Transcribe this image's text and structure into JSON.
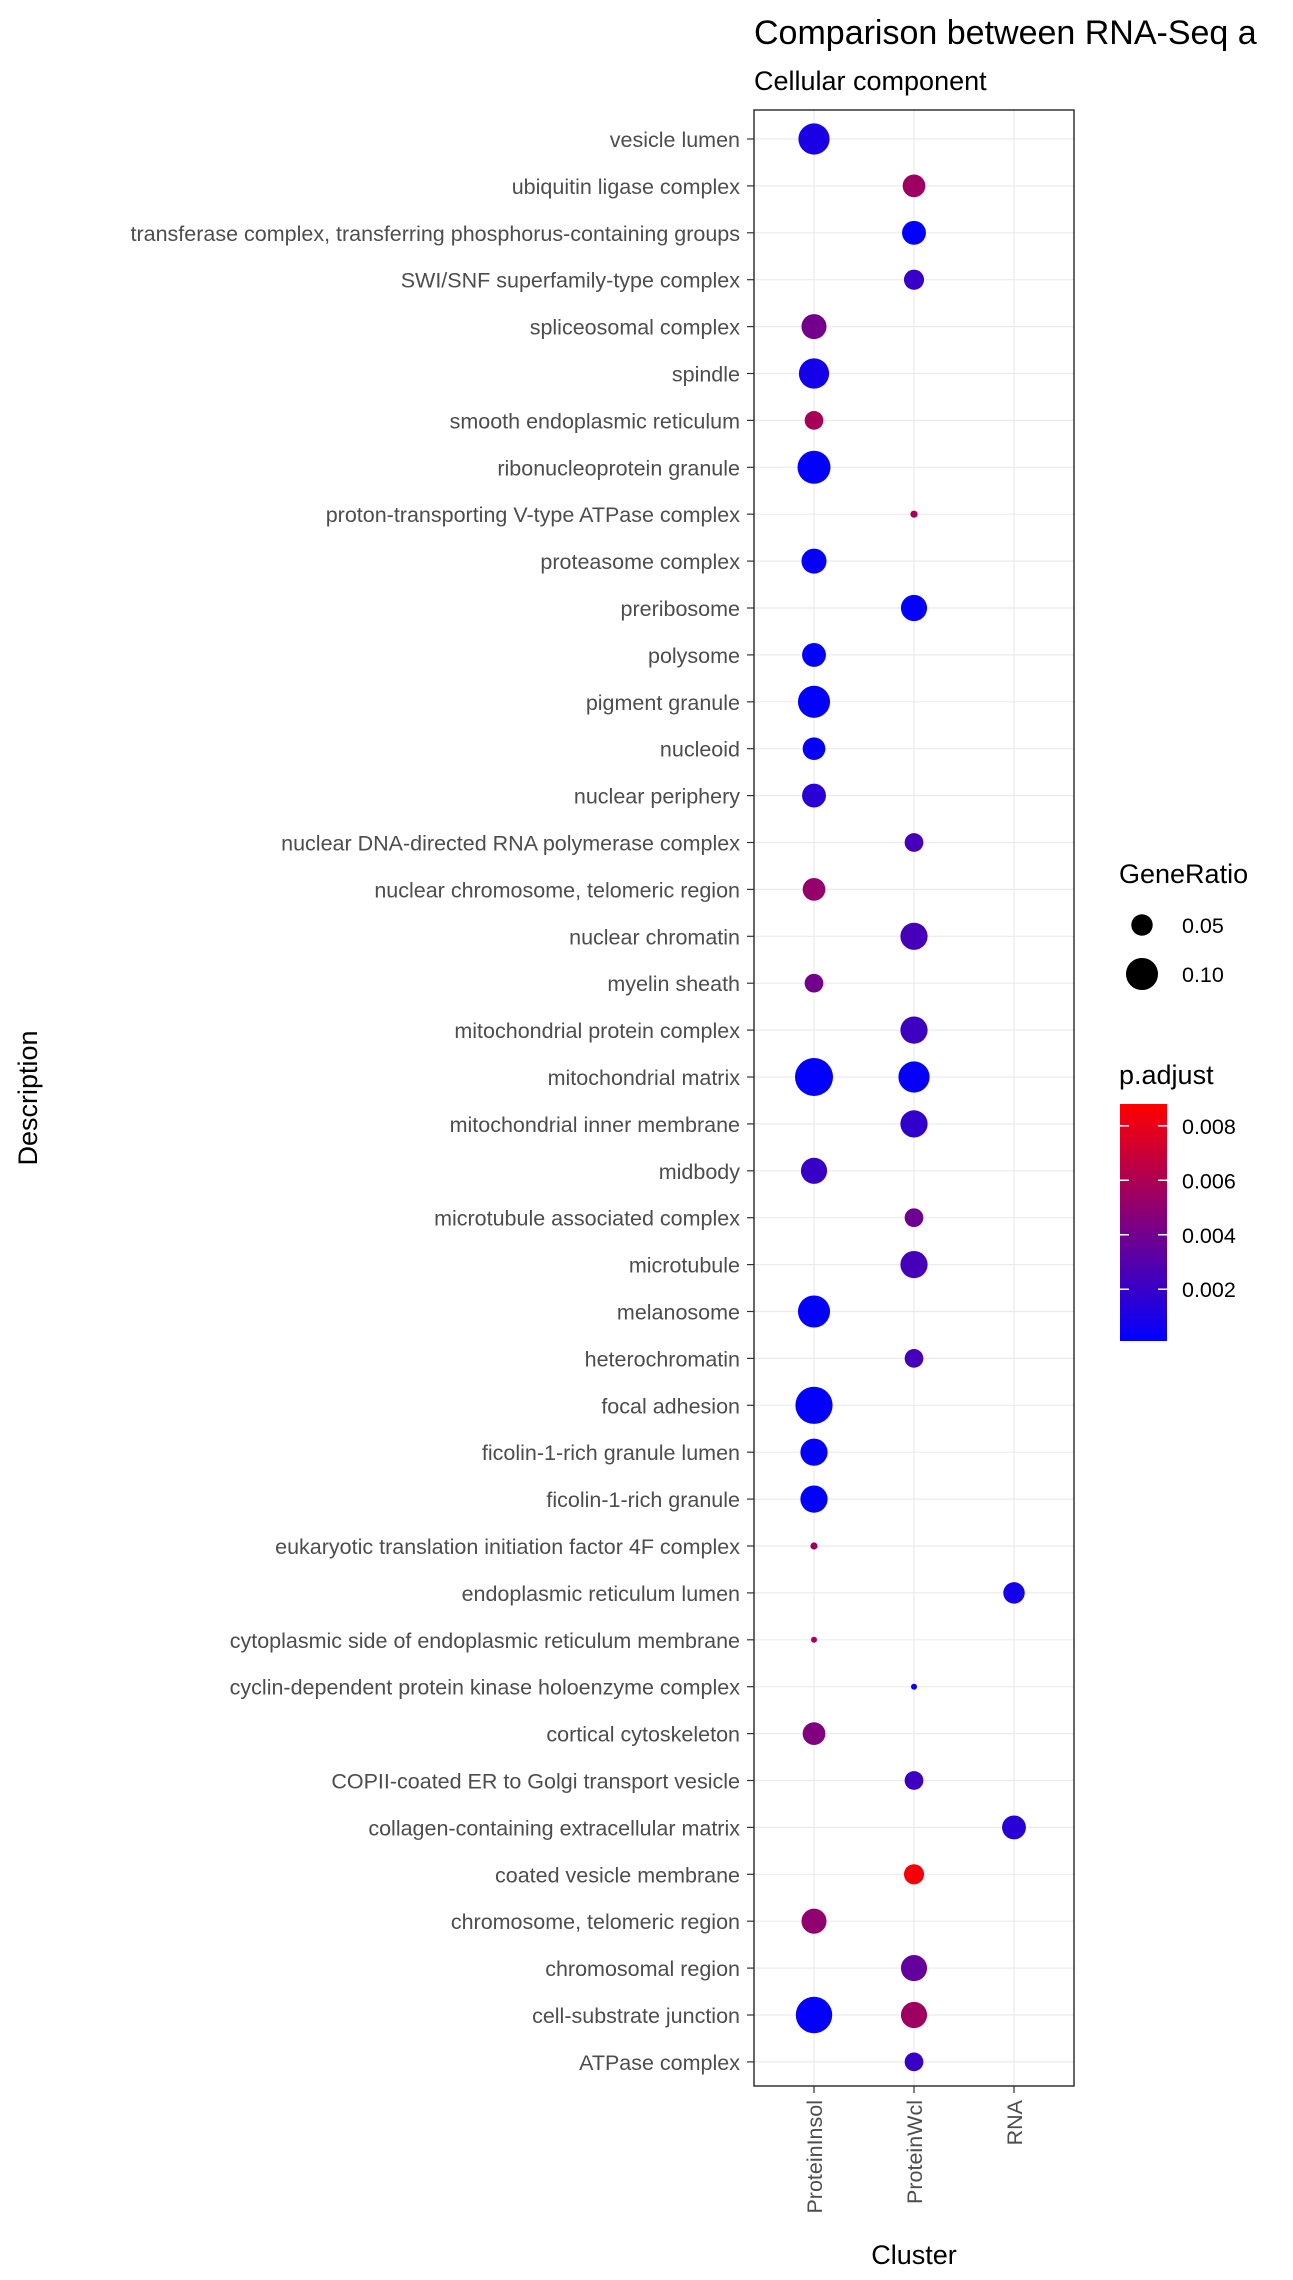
{
  "chart_data": {
    "type": "scatter",
    "title": "Comparison between RNA-Seq a",
    "subtitle": "Cellular component",
    "xlabel": "Cluster",
    "ylabel": "Description",
    "grid": true,
    "legend_placement": "right",
    "clusters": [
      "ProteinInsol",
      "ProteinWcl",
      "RNA"
    ],
    "descriptions": [
      "vesicle lumen",
      "ubiquitin ligase complex",
      "transferase complex, transferring phosphorus-containing groups",
      "SWI/SNF superfamily-type complex",
      "spliceosomal complex",
      "spindle",
      "smooth endoplasmic reticulum",
      "ribonucleoprotein granule",
      "proton-transporting V-type ATPase complex",
      "proteasome complex",
      "preribosome",
      "polysome",
      "pigment granule",
      "nucleoid",
      "nuclear periphery",
      "nuclear DNA-directed RNA polymerase complex",
      "nuclear chromosome, telomeric region",
      "nuclear chromatin",
      "myelin sheath",
      "mitochondrial protein complex",
      "mitochondrial matrix",
      "mitochondrial inner membrane",
      "midbody",
      "microtubule associated complex",
      "microtubule",
      "melanosome",
      "heterochromatin",
      "focal adhesion",
      "ficolin-1-rich granule lumen",
      "ficolin-1-rich granule",
      "eukaryotic translation initiation factor 4F complex",
      "endoplasmic reticulum lumen",
      "cytoplasmic side of endoplasmic reticulum membrane",
      "cyclin-dependent protein kinase holoenzyme complex",
      "cortical cytoskeleton",
      "COPII-coated ER to Golgi transport vesicle",
      "collagen-containing extracellular matrix",
      "coated vesicle membrane",
      "chromosome, telomeric region",
      "chromosomal region",
      "cell-substrate junction",
      "ATPase complex"
    ],
    "points": [
      {
        "cluster": "ProteinInsol",
        "description": "vesicle lumen",
        "gene_ratio": 0.095,
        "p_adjust": 0.001
      },
      {
        "cluster": "ProteinWcl",
        "description": "ubiquitin ligase complex",
        "gene_ratio": 0.055,
        "p_adjust": 0.0055
      },
      {
        "cluster": "ProteinWcl",
        "description": "transferase complex, transferring phosphorus-containing groups",
        "gene_ratio": 0.06,
        "p_adjust": 0.0002
      },
      {
        "cluster": "ProteinWcl",
        "description": "SWI/SNF superfamily-type complex",
        "gene_ratio": 0.045,
        "p_adjust": 0.002
      },
      {
        "cluster": "ProteinInsol",
        "description": "spliceosomal complex",
        "gene_ratio": 0.065,
        "p_adjust": 0.004
      },
      {
        "cluster": "ProteinInsol",
        "description": "spindle",
        "gene_ratio": 0.09,
        "p_adjust": 0.0008
      },
      {
        "cluster": "ProteinInsol",
        "description": "smooth endoplasmic reticulum",
        "gene_ratio": 0.04,
        "p_adjust": 0.0058
      },
      {
        "cluster": "ProteinInsol",
        "description": "ribonucleoprotein granule",
        "gene_ratio": 0.105,
        "p_adjust": 0.0002
      },
      {
        "cluster": "ProteinWcl",
        "description": "proton-transporting V-type ATPase complex",
        "gene_ratio": 0.01,
        "p_adjust": 0.0058
      },
      {
        "cluster": "ProteinInsol",
        "description": "proteasome complex",
        "gene_ratio": 0.065,
        "p_adjust": 0.0003
      },
      {
        "cluster": "ProteinWcl",
        "description": "preribosome",
        "gene_ratio": 0.07,
        "p_adjust": 0.0002
      },
      {
        "cluster": "ProteinInsol",
        "description": "polysome",
        "gene_ratio": 0.06,
        "p_adjust": 0.0002
      },
      {
        "cluster": "ProteinInsol",
        "description": "pigment granule",
        "gene_ratio": 0.1,
        "p_adjust": 0.0002
      },
      {
        "cluster": "ProteinInsol",
        "description": "nucleoid",
        "gene_ratio": 0.055,
        "p_adjust": 0.0003
      },
      {
        "cluster": "ProteinInsol",
        "description": "nuclear periphery",
        "gene_ratio": 0.06,
        "p_adjust": 0.0015
      },
      {
        "cluster": "ProteinWcl",
        "description": "nuclear DNA-directed RNA polymerase complex",
        "gene_ratio": 0.04,
        "p_adjust": 0.0025
      },
      {
        "cluster": "ProteinInsol",
        "description": "nuclear chromosome, telomeric region",
        "gene_ratio": 0.055,
        "p_adjust": 0.0052
      },
      {
        "cluster": "ProteinWcl",
        "description": "nuclear chromatin",
        "gene_ratio": 0.075,
        "p_adjust": 0.0025
      },
      {
        "cluster": "ProteinInsol",
        "description": "myelin sheath",
        "gene_ratio": 0.04,
        "p_adjust": 0.004
      },
      {
        "cluster": "ProteinWcl",
        "description": "mitochondrial protein complex",
        "gene_ratio": 0.075,
        "p_adjust": 0.0022
      },
      {
        "cluster": "ProteinInsol",
        "description": "mitochondrial matrix",
        "gene_ratio": 0.135,
        "p_adjust": 0.0002
      },
      {
        "cluster": "ProteinWcl",
        "description": "mitochondrial matrix",
        "gene_ratio": 0.095,
        "p_adjust": 0.0003
      },
      {
        "cluster": "ProteinWcl",
        "description": "mitochondrial inner membrane",
        "gene_ratio": 0.075,
        "p_adjust": 0.0018
      },
      {
        "cluster": "ProteinInsol",
        "description": "midbody",
        "gene_ratio": 0.07,
        "p_adjust": 0.002
      },
      {
        "cluster": "ProteinWcl",
        "description": "microtubule associated complex",
        "gene_ratio": 0.04,
        "p_adjust": 0.0038
      },
      {
        "cluster": "ProteinWcl",
        "description": "microtubule",
        "gene_ratio": 0.075,
        "p_adjust": 0.0025
      },
      {
        "cluster": "ProteinInsol",
        "description": "melanosome",
        "gene_ratio": 0.1,
        "p_adjust": 0.0002
      },
      {
        "cluster": "ProteinWcl",
        "description": "heterochromatin",
        "gene_ratio": 0.04,
        "p_adjust": 0.0025
      },
      {
        "cluster": "ProteinInsol",
        "description": "focal adhesion",
        "gene_ratio": 0.13,
        "p_adjust": 0.0002
      },
      {
        "cluster": "ProteinInsol",
        "description": "ficolin-1-rich granule lumen",
        "gene_ratio": 0.075,
        "p_adjust": 0.0002
      },
      {
        "cluster": "ProteinInsol",
        "description": "ficolin-1-rich granule",
        "gene_ratio": 0.075,
        "p_adjust": 0.0002
      },
      {
        "cluster": "ProteinInsol",
        "description": "eukaryotic translation initiation factor 4F complex",
        "gene_ratio": 0.01,
        "p_adjust": 0.0055
      },
      {
        "cluster": "RNA",
        "description": "endoplasmic reticulum lumen",
        "gene_ratio": 0.05,
        "p_adjust": 0.0008
      },
      {
        "cluster": "ProteinInsol",
        "description": "cytoplasmic side of endoplasmic reticulum membrane",
        "gene_ratio": 0.008,
        "p_adjust": 0.0058
      },
      {
        "cluster": "ProteinWcl",
        "description": "cyclin-dependent protein kinase holoenzyme complex",
        "gene_ratio": 0.008,
        "p_adjust": 0.0005
      },
      {
        "cluster": "ProteinInsol",
        "description": "cortical cytoskeleton",
        "gene_ratio": 0.055,
        "p_adjust": 0.0045
      },
      {
        "cluster": "ProteinWcl",
        "description": "COPII-coated ER to Golgi transport vesicle",
        "gene_ratio": 0.04,
        "p_adjust": 0.0022
      },
      {
        "cluster": "RNA",
        "description": "collagen-containing extracellular matrix",
        "gene_ratio": 0.06,
        "p_adjust": 0.0015
      },
      {
        "cluster": "ProteinWcl",
        "description": "coated vesicle membrane",
        "gene_ratio": 0.045,
        "p_adjust": 0.0085
      },
      {
        "cluster": "ProteinInsol",
        "description": "chromosome, telomeric region",
        "gene_ratio": 0.065,
        "p_adjust": 0.005
      },
      {
        "cluster": "ProteinWcl",
        "description": "chromosomal region",
        "gene_ratio": 0.07,
        "p_adjust": 0.0035
      },
      {
        "cluster": "ProteinInsol",
        "description": "cell-substrate junction",
        "gene_ratio": 0.125,
        "p_adjust": 0.0002
      },
      {
        "cluster": "ProteinWcl",
        "description": "cell-substrate junction",
        "gene_ratio": 0.07,
        "p_adjust": 0.0055
      },
      {
        "cluster": "ProteinWcl",
        "description": "ATPase complex",
        "gene_ratio": 0.04,
        "p_adjust": 0.002
      }
    ],
    "size_legend": {
      "title": "GeneRatio",
      "values": [
        0.05,
        0.1
      ],
      "labels": [
        "0.05",
        "0.10"
      ]
    },
    "color_legend": {
      "title": "p.adjust",
      "min": 0.0001,
      "max": 0.0088,
      "ticks": [
        0.002,
        0.004,
        0.006,
        0.008
      ],
      "labels": [
        "0.002",
        "0.004",
        "0.006",
        "0.008"
      ],
      "low_color": "#0000ff",
      "high_color": "#ff0000"
    },
    "colors": {
      "grid": "#ebebeb",
      "panel_border": "#333333",
      "label_text": "#4d4d4d",
      "title_text": "#000000"
    }
  }
}
